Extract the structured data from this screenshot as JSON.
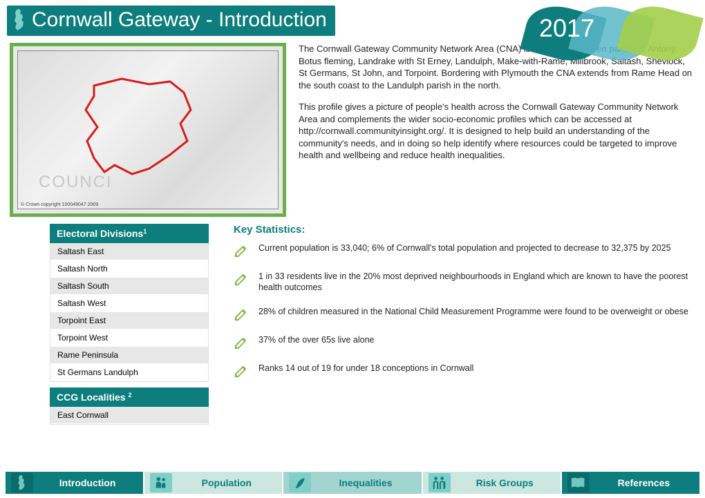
{
  "header": {
    "title": "Cornwall Gateway - Introduction",
    "year": "2017",
    "leaf_colors": [
      "#0d7d7d",
      "#5ab7c7",
      "#a3cf4a"
    ]
  },
  "map": {
    "copyright": "© Crown copyright 100049047 2009",
    "watermark": "COUNCI"
  },
  "intro": {
    "p1": "The Cornwall Gateway Community Network Area (CNA) is made up of eleven parishes; Antony, Botus fleming, Landrake with St Erney, Landulph, Make-with-Rame, Millbrook, Saltash, Sheviock, St Germans, St John, and Torpoint. Bordering with Plymouth the CNA extends from Rame Head on the south coast to the Landulph parish in the north.",
    "p2": "This profile gives a picture of people's health across the Cornwall Gateway Community Network Area and complements the wider socio-economic profiles which can be accessed at http://cornwall.communityinsight.org/. It is designed to help build an understanding of the community's needs, and in doing so help identify where resources could be targeted to improve health and wellbeing and reduce health inequalities."
  },
  "electoral": {
    "heading": "Electoral Divisions",
    "sup": "1",
    "rows": [
      "Saltash East",
      "Saltash North",
      "Saltash South",
      "Saltash West",
      "Torpoint East",
      "Torpoint West",
      "Rame Peninsula",
      "St Germans Landulph"
    ]
  },
  "ccg": {
    "heading": "CCG Localities ",
    "sup": "2",
    "rows": [
      "East Cornwall"
    ]
  },
  "stats": {
    "heading": "Key Statistics:",
    "items": [
      "Current population is 33,040; 6% of Cornwall's total population and projected to decrease to 32,375 by 2025",
      "1 in 33 residents live in the 20% most deprived neighbourhoods in England which are known to have the poorest health outcomes",
      "28% of children measured in the National Child Measurement Programme were found to be overweight or obese",
      "37% of the over 65s live alone",
      "Ranks 14 out of 19 for under 18 conceptions in Cornwall"
    ]
  },
  "nav": {
    "tabs": [
      {
        "label": "Introduction",
        "icon": "uk"
      },
      {
        "label": "Population",
        "icon": "people"
      },
      {
        "label": "Inequalities",
        "icon": "feather"
      },
      {
        "label": "Risk Groups",
        "icon": "group"
      },
      {
        "label": "References",
        "icon": "book"
      }
    ]
  },
  "colors": {
    "teal": "#0d7d7d",
    "green": "#7fb93e",
    "border_green": "#6ab04a"
  }
}
